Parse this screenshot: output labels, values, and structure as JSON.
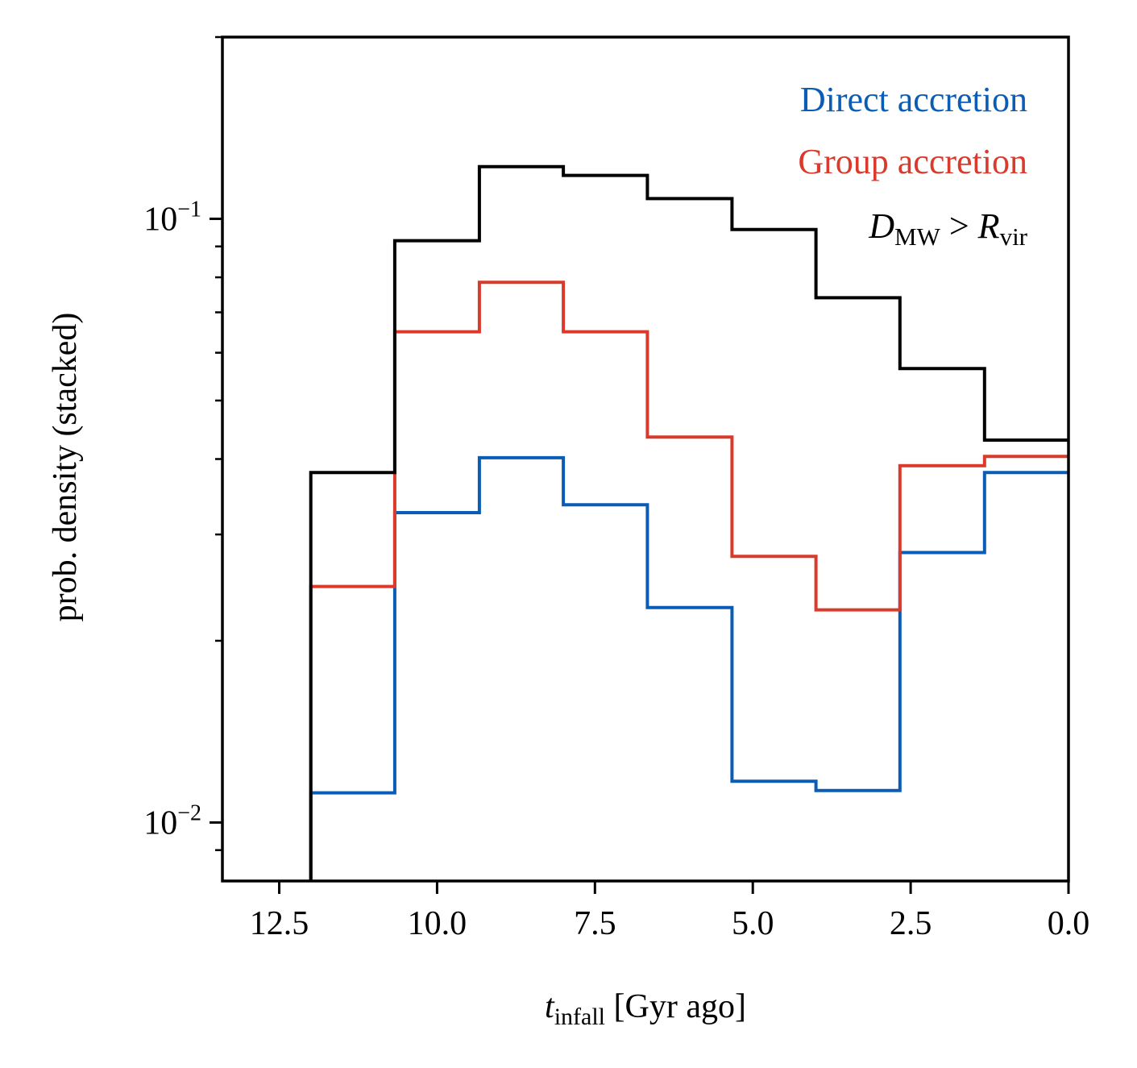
{
  "chart_data": {
    "type": "step-histogram",
    "title": "",
    "xlabel_main": "t",
    "xlabel_sub": "infall",
    "xlabel_rest": " [Gyr ago]",
    "ylabel": "prob. density (stacked)",
    "xscale": "linear",
    "yscale": "log",
    "xlim": [
      13.4,
      0.0
    ],
    "ylim": [
      0.008,
      0.2
    ],
    "x_inverted": true,
    "x_ticks": [
      12.5,
      10.0,
      7.5,
      5.0,
      2.5,
      0.0
    ],
    "x_tick_labels": [
      "12.5",
      "10.0",
      "7.5",
      "5.0",
      "2.5",
      "0.0"
    ],
    "y_major_ticks": [
      0.01,
      0.1
    ],
    "y_major_tick_labels": [
      {
        "base": "10",
        "exp": "−2"
      },
      {
        "base": "10",
        "exp": "−1"
      }
    ],
    "y_minor_ticks": [
      0.009,
      0.02,
      0.03,
      0.04,
      0.05,
      0.06,
      0.07,
      0.08,
      0.09,
      0.2
    ],
    "bin_edges": [
      12.0,
      10.67,
      9.33,
      8.0,
      6.67,
      5.33,
      4.0,
      2.67,
      1.33,
      0.0
    ],
    "series": [
      {
        "name": "Direct accretion",
        "color": "#0a5cb5",
        "values": [
          0.0112,
          0.0326,
          0.0402,
          0.0336,
          0.0227,
          0.0117,
          0.0113,
          0.028,
          0.038
        ]
      },
      {
        "name": "Group accretion",
        "color": "#d93a2b",
        "values": [
          0.0246,
          0.065,
          0.0785,
          0.065,
          0.0435,
          0.0276,
          0.0225,
          0.039,
          0.0404
        ]
      },
      {
        "name": "D_MW > R_vir",
        "color": "#000000",
        "values": [
          0.038,
          0.092,
          0.122,
          0.118,
          0.108,
          0.096,
          0.074,
          0.0565,
          0.043
        ]
      }
    ],
    "legend": {
      "placement": "top-right",
      "entries": [
        {
          "text": "Direct accretion",
          "color": "#0a5cb5"
        },
        {
          "text": "Group accretion",
          "color": "#d93a2b"
        },
        {
          "parts": [
            {
              "t": "D",
              "style": "italic"
            },
            {
              "t": "MW",
              "style": "sub"
            },
            {
              "t": " > ",
              "style": "normal"
            },
            {
              "t": "R",
              "style": "italic"
            },
            {
              "t": "vir",
              "style": "sub"
            }
          ],
          "color": "#000000"
        }
      ]
    }
  }
}
